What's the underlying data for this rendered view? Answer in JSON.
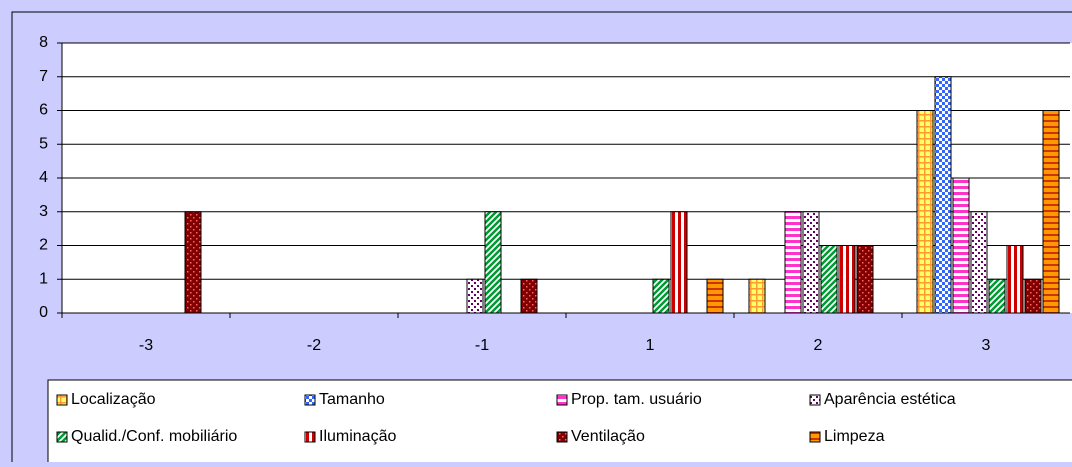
{
  "chart_data": {
    "type": "bar",
    "categories": [
      "-3",
      "-2",
      "-1",
      "1",
      "2",
      "3"
    ],
    "ylim": [
      0,
      8
    ],
    "yticks": [
      0,
      1,
      2,
      3,
      4,
      5,
      6,
      7,
      8
    ],
    "grid": true,
    "series": [
      {
        "name": "Localização",
        "color": "#ff9933",
        "pattern": "grid",
        "values": [
          0,
          0,
          0,
          0,
          1,
          6
        ]
      },
      {
        "name": "Tamanho",
        "color": "#3366ff",
        "pattern": "checker",
        "values": [
          0,
          0,
          0,
          0,
          0,
          7
        ]
      },
      {
        "name": "Prop. tam. usuário",
        "color": "#ff33cc",
        "pattern": "hstripe",
        "values": [
          0,
          0,
          0,
          0,
          3,
          4
        ]
      },
      {
        "name": "Aparência estética",
        "color": "#660066",
        "pattern": "dots",
        "values": [
          0,
          0,
          1,
          0,
          3,
          3
        ]
      },
      {
        "name": "Qualid./Conf. mobiliário",
        "color": "#009933",
        "pattern": "diag",
        "values": [
          0,
          0,
          3,
          1,
          2,
          1
        ]
      },
      {
        "name": "Iluminação",
        "color": "#cc0000",
        "pattern": "vstripe",
        "values": [
          0,
          0,
          0,
          3,
          2,
          2
        ]
      },
      {
        "name": "Ventilação",
        "color": "#800000",
        "pattern": "darkdots",
        "values": [
          3,
          0,
          1,
          0,
          2,
          1
        ]
      },
      {
        "name": "Limpeza",
        "color": "#cc3300",
        "pattern": "hstripe2",
        "values": [
          0,
          0,
          0,
          1,
          0,
          6
        ]
      }
    ]
  }
}
